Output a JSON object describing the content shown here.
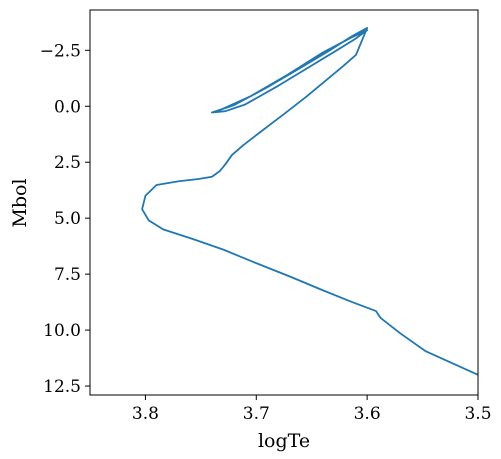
{
  "chart_data": {
    "type": "line",
    "xlabel": "logTe",
    "ylabel": "Mbol",
    "xlim": [
      3.85,
      3.5
    ],
    "ylim": [
      12.9,
      -4.3
    ],
    "x_axis_inverted": true,
    "y_axis_inverted": true,
    "grid": false,
    "series_color": "#1f77b4",
    "x_ticks": [
      {
        "value": 3.8,
        "label": "3.8"
      },
      {
        "value": 3.7,
        "label": "3.7"
      },
      {
        "value": 3.6,
        "label": "3.6"
      },
      {
        "value": 3.5,
        "label": "3.5"
      }
    ],
    "y_ticks": [
      {
        "value": -2.5,
        "label": "−2.5"
      },
      {
        "value": 0.0,
        "label": "0.0"
      },
      {
        "value": 2.5,
        "label": "2.5"
      },
      {
        "value": 5.0,
        "label": "5.0"
      },
      {
        "value": 7.5,
        "label": "7.5"
      },
      {
        "value": 10.0,
        "label": "10.0"
      },
      {
        "value": 12.5,
        "label": "12.5"
      }
    ],
    "series": [
      {
        "x": [
          3.5,
          3.52,
          3.547,
          3.57,
          3.588,
          3.592,
          3.615,
          3.64,
          3.67,
          3.703,
          3.73,
          3.758,
          3.784,
          3.797,
          3.803,
          3.8,
          3.79,
          3.77,
          3.752,
          3.74,
          3.733,
          3.728,
          3.722,
          3.712,
          3.695,
          3.675,
          3.655,
          3.638,
          3.622,
          3.61,
          3.6,
          3.614,
          3.632,
          3.66,
          3.69,
          3.72,
          3.74,
          3.728,
          3.71,
          3.68,
          3.65,
          3.63,
          3.611,
          3.6,
          3.615,
          3.64,
          3.672,
          3.705,
          3.735
        ],
        "y": [
          12.0,
          11.55,
          10.95,
          10.15,
          9.45,
          9.15,
          8.72,
          8.22,
          7.6,
          6.95,
          6.4,
          5.92,
          5.5,
          5.1,
          4.6,
          4.0,
          3.52,
          3.35,
          3.25,
          3.15,
          2.9,
          2.6,
          2.18,
          1.75,
          1.1,
          0.35,
          -0.42,
          -1.12,
          -1.78,
          -2.3,
          -3.5,
          -3.12,
          -2.55,
          -1.72,
          -0.85,
          -0.05,
          0.28,
          0.22,
          -0.08,
          -0.92,
          -1.82,
          -2.42,
          -3.0,
          -3.4,
          -3.05,
          -2.4,
          -1.4,
          -0.45,
          0.22
        ]
      }
    ]
  }
}
